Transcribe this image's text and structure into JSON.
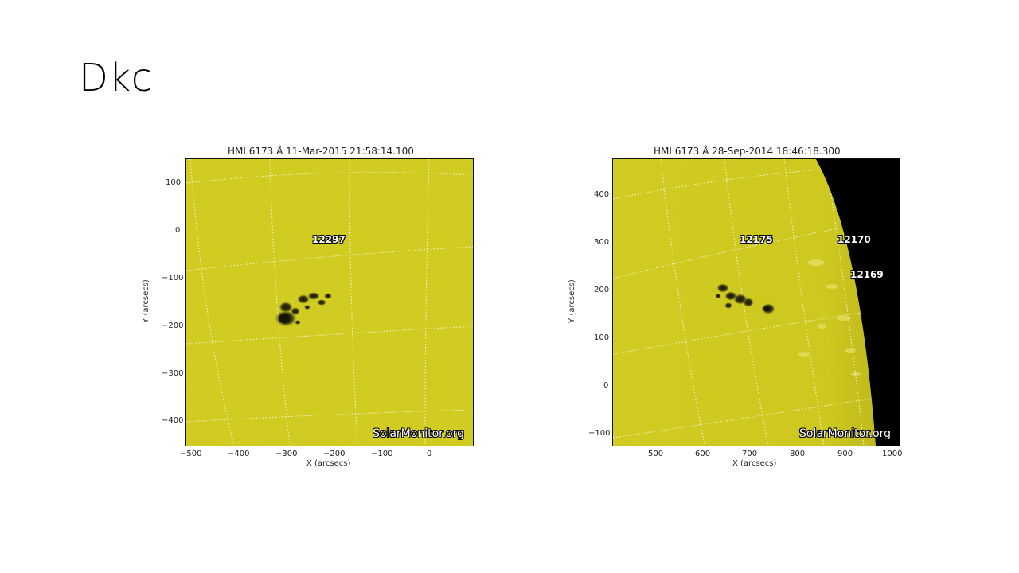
{
  "slide": {
    "title": "Dkc"
  },
  "panels": [
    {
      "title": "HMI 6173 Å 11-Mar-2015 21:58:14.100",
      "xlabel": "X (arcsecs)",
      "ylabel": "Y (arcsecs)",
      "xticks": [
        "−500",
        "−400",
        "−300",
        "−200",
        "−100",
        "0"
      ],
      "yticks": [
        "100",
        "0",
        "−100",
        "−200",
        "−300",
        "−400"
      ],
      "regions": [
        "12297"
      ],
      "watermark": "SolarMonitor.org",
      "colors": {
        "disk": "#d3cd1c",
        "spots": "#2b2a10"
      }
    },
    {
      "title": "HMI 6173 Å 28-Sep-2014 18:46:18.300",
      "xlabel": "X (arcsecs)",
      "ylabel": "Y (arcsecs)",
      "xticks": [
        "500",
        "600",
        "700",
        "800",
        "900",
        "1000"
      ],
      "yticks": [
        "400",
        "300",
        "200",
        "100",
        "0",
        "−100"
      ],
      "regions": [
        "12175",
        "12170",
        "12169"
      ],
      "watermark": "SolarMonitor.org",
      "colors": {
        "disk": "#d3cd1c",
        "space": "#000000"
      }
    }
  ]
}
